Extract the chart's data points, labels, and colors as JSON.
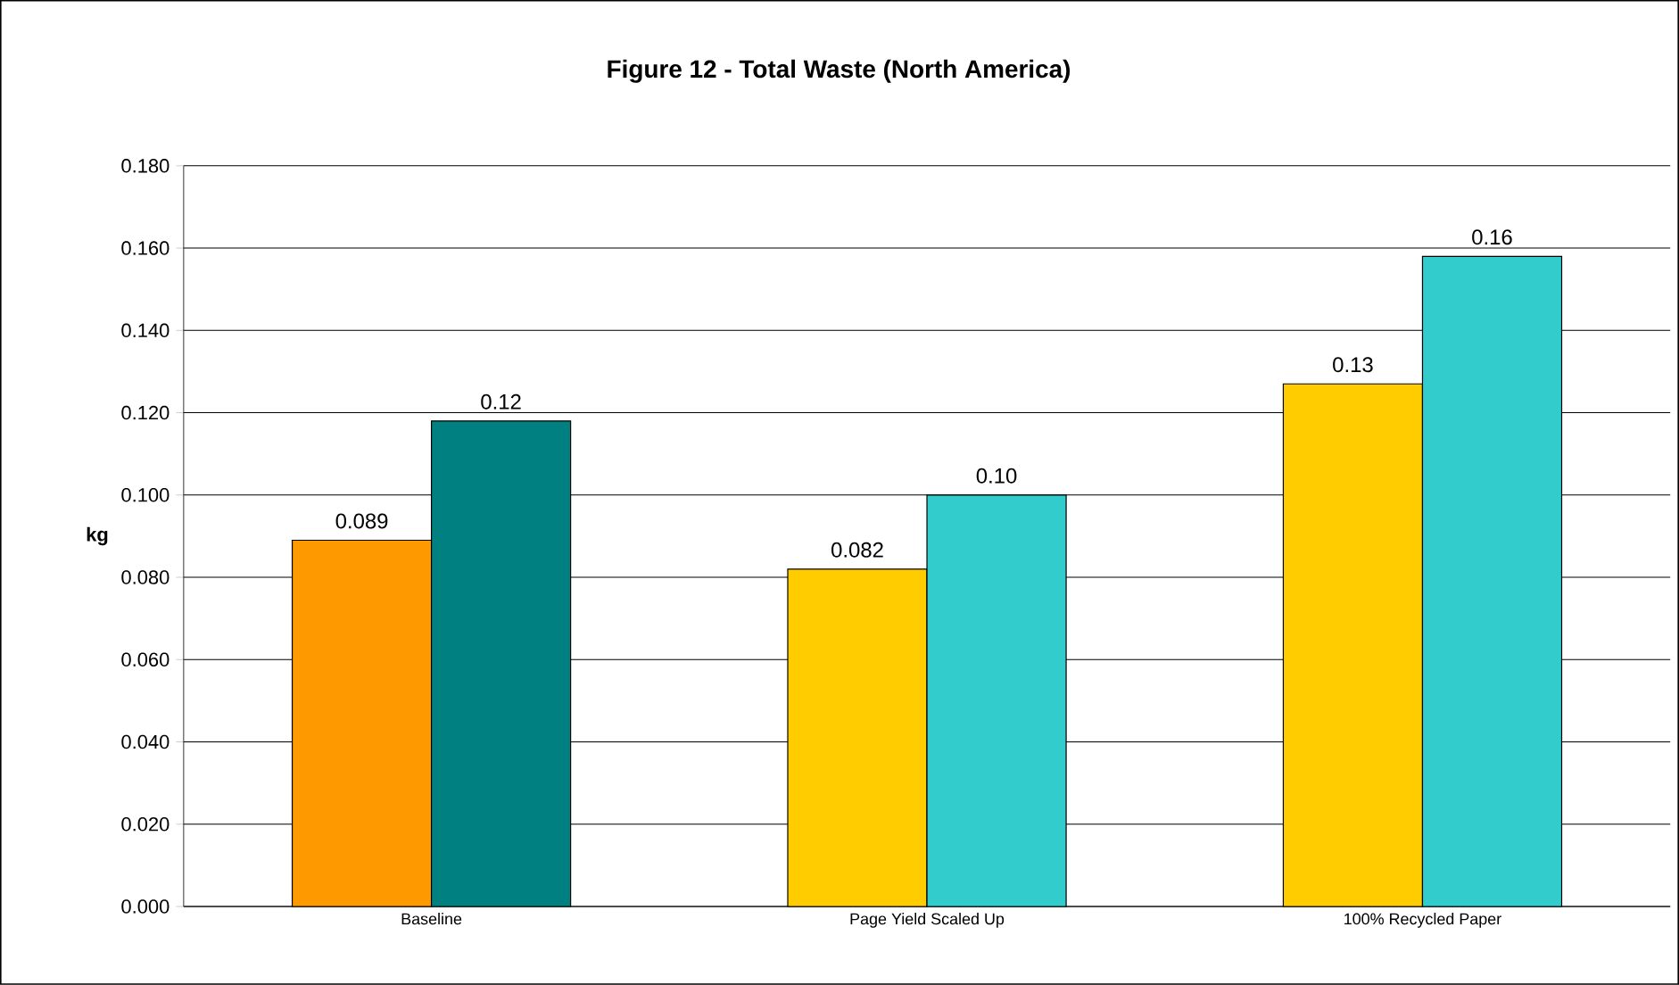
{
  "chart_data": {
    "type": "bar",
    "title": "Figure 12 - Total Waste (North America)",
    "ylabel": "kg",
    "categories": [
      "Baseline",
      "Page Yield Scaled Up",
      "100% Recycled Paper"
    ],
    "series": [
      {
        "colors": [
          "#ff9900",
          "#ffcc00",
          "#ffcc00"
        ],
        "values": [
          0.089,
          0.082,
          0.127
        ],
        "value_labels": [
          "0.089",
          "0.082",
          "0.13"
        ]
      },
      {
        "colors": [
          "#008080",
          "#33cccc",
          "#33cccc"
        ],
        "values": [
          0.118,
          0.1,
          0.158
        ],
        "value_labels": [
          "0.12",
          "0.10",
          "0.16"
        ]
      }
    ],
    "ylim": [
      0,
      0.18
    ],
    "yticks": [
      {
        "value": 0,
        "label": "0.000"
      },
      {
        "value": 0.02,
        "label": "0.020"
      },
      {
        "value": 0.04,
        "label": "0.040"
      },
      {
        "value": 0.06,
        "label": "0.060"
      },
      {
        "value": 0.08,
        "label": "0.080"
      },
      {
        "value": 0.1,
        "label": "0.100"
      },
      {
        "value": 0.12,
        "label": "0.120"
      },
      {
        "value": 0.14,
        "label": "0.140"
      },
      {
        "value": 0.16,
        "label": "0.160"
      },
      {
        "value": 0.18,
        "label": "0.180"
      }
    ],
    "grid": "y"
  }
}
